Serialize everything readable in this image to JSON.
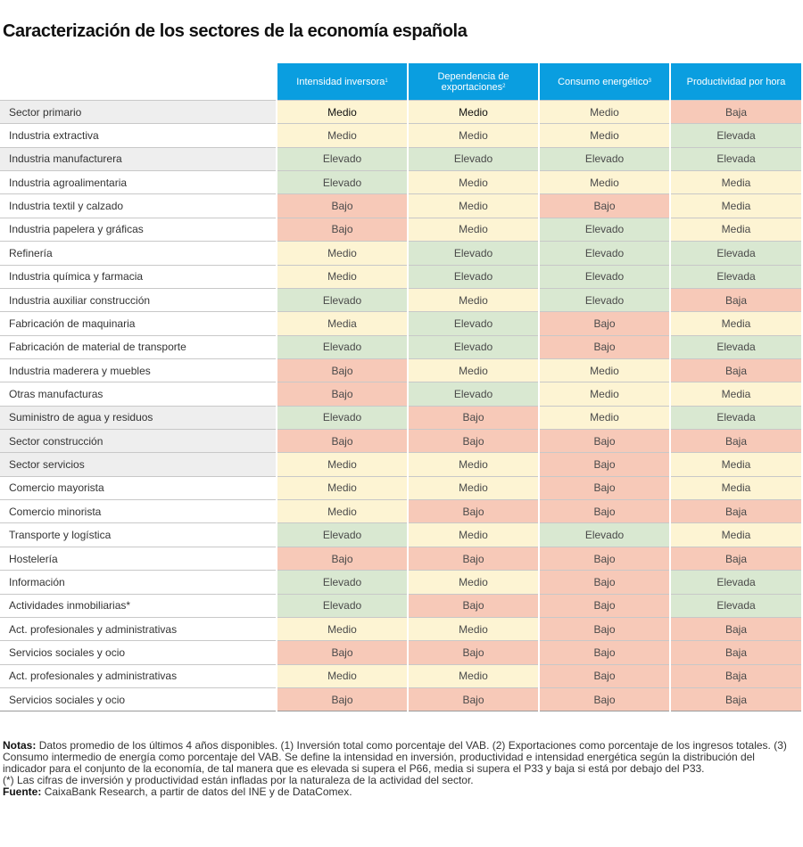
{
  "title": "Caracterización de los sectores de la economía española",
  "headers": [
    {
      "label": "Intensidad inversora",
      "sup": "1"
    },
    {
      "label": "Dependencia de exportaciones",
      "sup": "2"
    },
    {
      "label": "Consumo energético",
      "sup": "3"
    },
    {
      "label": "Productividad por hora",
      "sup": ""
    }
  ],
  "legend_colors": {
    "high": "#d9e8d1",
    "mid": "#fdf4d3",
    "low": "#f7c9b8",
    "header": "#0a9ee0"
  },
  "rows": [
    {
      "sector": "Sector primario",
      "values": [
        "Medio",
        "Medio",
        "Medio",
        "Baja"
      ]
    },
    {
      "sector": "Industria extractiva",
      "values": [
        "Medio",
        "Medio",
        "Medio",
        "Elevada"
      ]
    },
    {
      "sector": "Industria manufacturera",
      "values": [
        "Elevado",
        "Elevado",
        "Elevado",
        "Elevada"
      ]
    },
    {
      "sector": "Industria agroalimentaria",
      "values": [
        "Elevado",
        "Medio",
        "Medio",
        "Media"
      ]
    },
    {
      "sector": "Industria textil y calzado",
      "values": [
        "Bajo",
        "Medio",
        "Bajo",
        "Media"
      ]
    },
    {
      "sector": "Industria papelera y gráficas",
      "values": [
        "Bajo",
        "Medio",
        "Elevado",
        "Media"
      ]
    },
    {
      "sector": "Refinería",
      "values": [
        "Medio",
        "Elevado",
        "Elevado",
        "Elevada"
      ]
    },
    {
      "sector": "Industria química y farmacia",
      "values": [
        "Medio",
        "Elevado",
        "Elevado",
        "Elevada"
      ]
    },
    {
      "sector": "Industria auxiliar construcción",
      "values": [
        "Elevado",
        "Medio",
        "Elevado",
        "Baja"
      ]
    },
    {
      "sector": "Fabricación de maquinaria",
      "values": [
        "Media",
        "Elevado",
        "Bajo",
        "Media"
      ]
    },
    {
      "sector": "Fabricación de material de transporte",
      "values": [
        "Elevado",
        "Elevado",
        "Bajo",
        "Elevada"
      ]
    },
    {
      "sector": "Industria maderera y muebles",
      "values": [
        "Bajo",
        "Medio",
        "Medio",
        "Baja"
      ]
    },
    {
      "sector": "Otras manufacturas",
      "values": [
        "Bajo",
        "Elevado",
        "Medio",
        "Media"
      ]
    },
    {
      "sector": "Suministro de agua y residuos",
      "values": [
        "Elevado",
        "Bajo",
        "Medio",
        "Elevada"
      ]
    },
    {
      "sector": "Sector construcción",
      "values": [
        "Bajo",
        "Bajo",
        "Bajo",
        "Baja"
      ]
    },
    {
      "sector": "Sector servicios",
      "values": [
        "Medio",
        "Medio",
        "Bajo",
        "Media"
      ]
    },
    {
      "sector": "Comercio mayorista",
      "values": [
        "Medio",
        "Medio",
        "Bajo",
        "Media"
      ]
    },
    {
      "sector": "Comercio minorista",
      "values": [
        "Medio",
        "Bajo",
        "Bajo",
        "Baja"
      ]
    },
    {
      "sector": "Transporte y logística",
      "values": [
        "Elevado",
        "Medio",
        "Elevado",
        "Media"
      ]
    },
    {
      "sector": "Hostelería",
      "values": [
        "Bajo",
        "Bajo",
        "Bajo",
        "Baja"
      ]
    },
    {
      "sector": "Información",
      "values": [
        "Elevado",
        "Medio",
        "Bajo",
        "Elevada"
      ]
    },
    {
      "sector": "Actividades inmobiliarias*",
      "values": [
        "Elevado",
        "Bajo",
        "Bajo",
        "Elevada"
      ]
    },
    {
      "sector": "Act. profesionales y administrativas",
      "values": [
        "Medio",
        "Medio",
        "Bajo",
        "Baja"
      ]
    },
    {
      "sector": "Servicios sociales y ocio",
      "values": [
        "Bajo",
        "Bajo",
        "Bajo",
        "Baja"
      ]
    },
    {
      "sector": "Act. profesionales y administrativas",
      "values": [
        "Medio",
        "Medio",
        "Bajo",
        "Baja"
      ]
    },
    {
      "sector": "Servicios sociales y ocio",
      "values": [
        "Bajo",
        "Bajo",
        "Bajo",
        "Baja"
      ]
    }
  ],
  "notes": {
    "label": "Notas:",
    "text": "Datos promedio de los últimos 4 años disponibles. (1) Inversión total como porcentaje del VAB. (2) Exportaciones como porcentaje de los ingresos totales. (3) Consumo intermedio de energía como porcentaje del VAB. Se define la intensidad en inversión, productividad e intensidad energética según la distribución del indicador para el conjunto de la economía, de tal manera que es elevada si supera el P66, media si supera el P33 y baja si está por debajo del P33.",
    "asterisk": "(*) Las cifras de inversión y productividad están infladas por la naturaleza de la actividad del sector.",
    "source_label": "Fuente:",
    "source_text": "CaixaBank Research, a partir de datos del INE y de DataComex."
  }
}
